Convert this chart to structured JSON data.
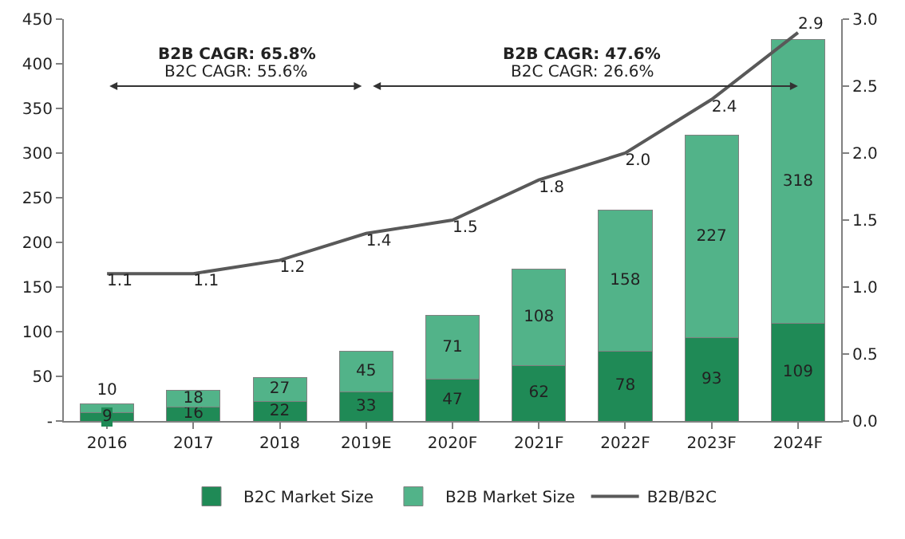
{
  "chart_data": {
    "type": "bar",
    "stacked": true,
    "categories": [
      "2016",
      "2017",
      "2018",
      "2019E",
      "2020F",
      "2021F",
      "2022F",
      "2023F",
      "2024F"
    ],
    "series": [
      {
        "name": "B2C Market Size",
        "color": "#1f8a56",
        "values": [
          9,
          16,
          22,
          33,
          47,
          62,
          78,
          93,
          109
        ]
      },
      {
        "name": "B2B Market Size",
        "color": "#52b389",
        "values": [
          10,
          18,
          27,
          45,
          71,
          108,
          158,
          227,
          318
        ]
      },
      {
        "name": "B2B/B2C",
        "type": "line",
        "axis": "y2",
        "color": "#595959",
        "marker": "none",
        "values": [
          1.1,
          1.1,
          1.2,
          1.4,
          1.5,
          1.8,
          2.0,
          2.4,
          2.9
        ],
        "value_labels": [
          "1.1",
          "1.1",
          "1.2",
          "1.4",
          "1.5",
          "1.8",
          "2.0",
          "2.4",
          "2.9"
        ]
      }
    ],
    "ylim": [
      0,
      450
    ],
    "yticks": [
      {
        "value": 0,
        "label": "-"
      },
      50,
      100,
      150,
      200,
      250,
      300,
      350,
      400,
      450
    ],
    "y2lim": [
      0,
      3
    ],
    "y2ticks": [
      {
        "value": 0,
        "label": "0.0"
      },
      {
        "value": 0.5,
        "label": "0.5"
      },
      {
        "value": 1,
        "label": "1.0"
      },
      {
        "value": 1.5,
        "label": "1.5"
      },
      {
        "value": 2,
        "label": "2.0"
      },
      {
        "value": 2.5,
        "label": "2.5"
      },
      {
        "value": 3,
        "label": "3.0"
      }
    ],
    "data_labels": true,
    "legend": "bottom",
    "annotations": [
      "B2B CAGR: 65.8%",
      "B2C CAGR: 55.6%",
      "B2B CAGR: 47.6%",
      "B2C CAGR: 26.6%"
    ]
  }
}
